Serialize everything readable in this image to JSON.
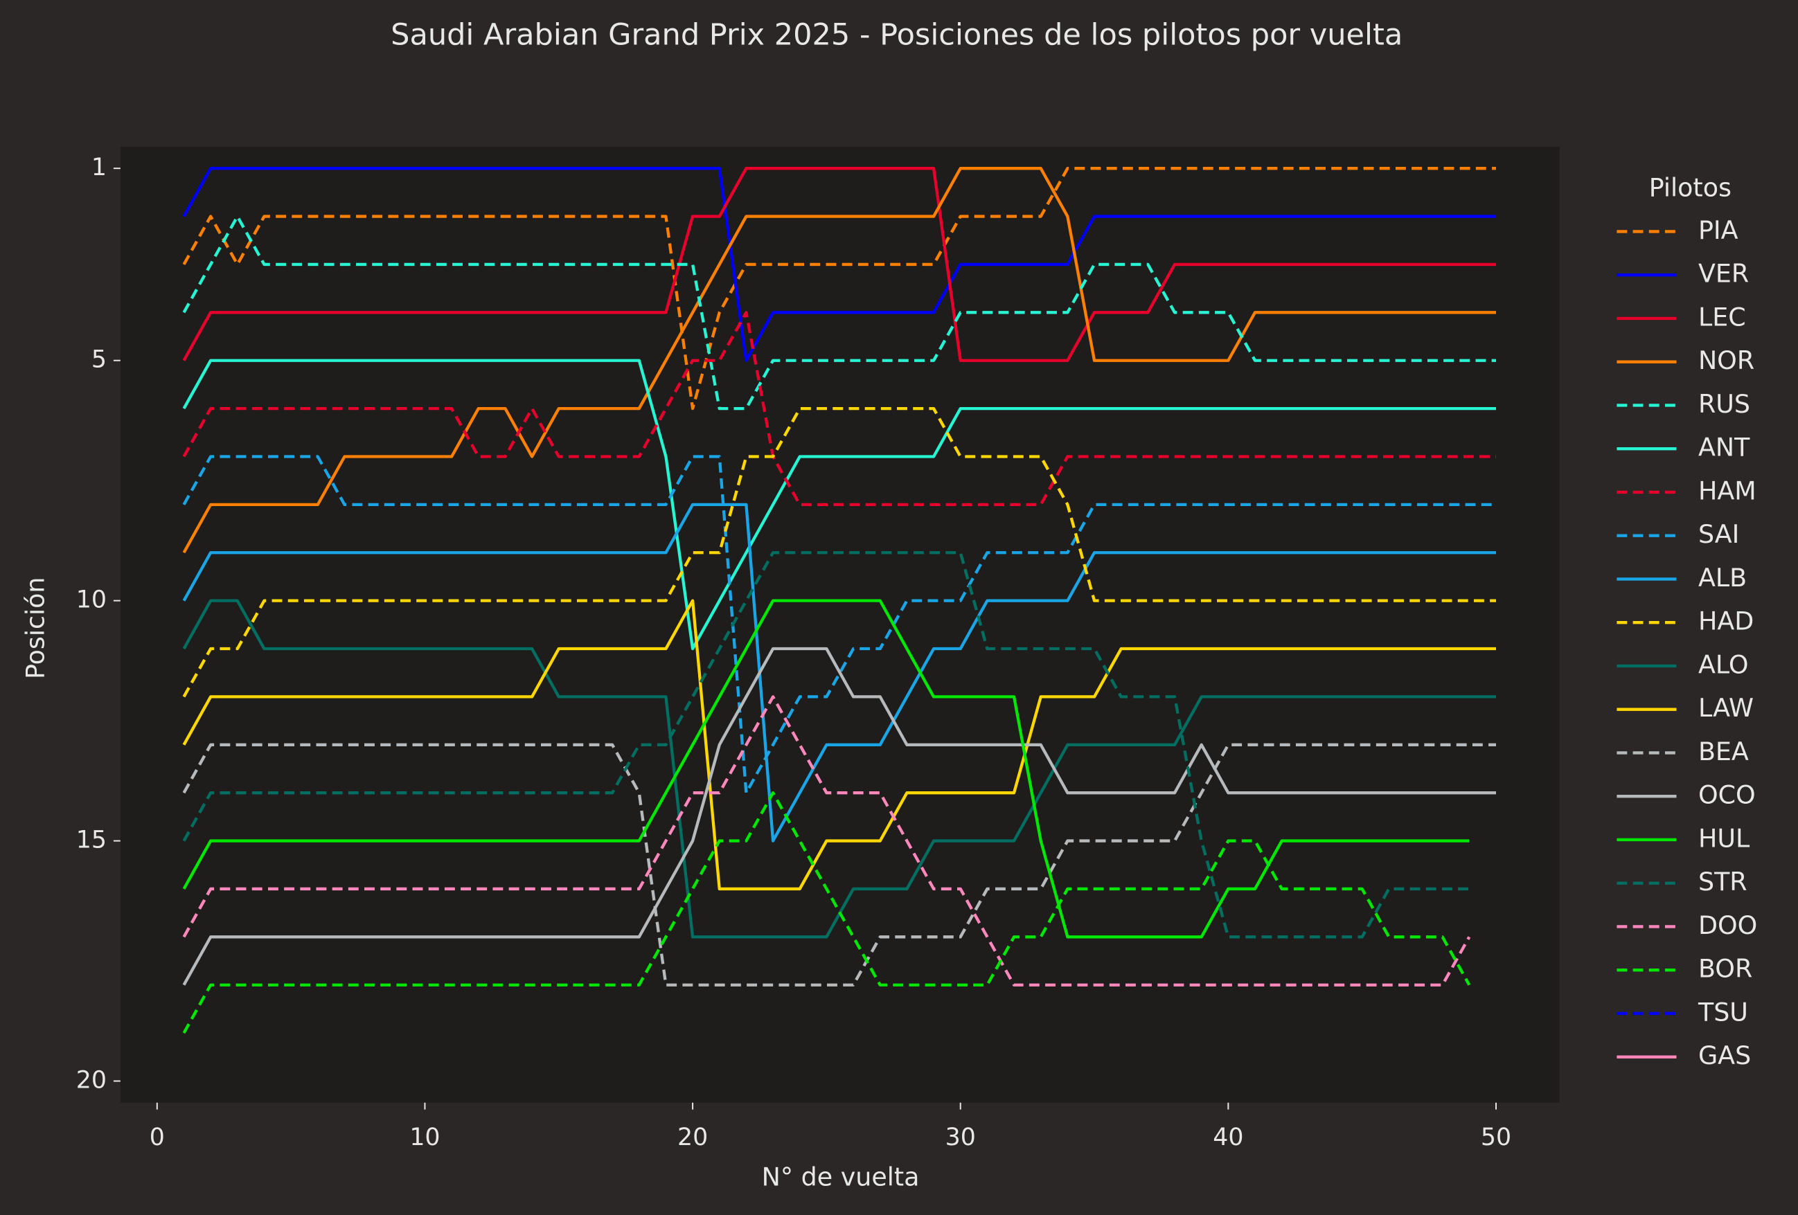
{
  "chart_data": {
    "type": "line",
    "title": "Saudi Arabian Grand Prix 2025 - Posiciones de los pilotos por vuelta",
    "xlabel": "N° de vuelta",
    "ylabel": "Posición",
    "legend_title": "Pilotos",
    "legend": "outside right",
    "xlim": [
      -1.37,
      52.37
    ],
    "xticks": [
      0,
      10,
      20,
      30,
      40,
      50
    ],
    "ylim": [
      0.55,
      20.45
    ],
    "yinvert": true,
    "yticks": [
      1,
      5,
      10,
      15,
      20
    ],
    "x": [
      1,
      2,
      3,
      4,
      5,
      6,
      7,
      8,
      9,
      10,
      11,
      12,
      13,
      14,
      15,
      16,
      17,
      18,
      19,
      20,
      21,
      22,
      23,
      24,
      25,
      26,
      27,
      28,
      29,
      30,
      31,
      32,
      33,
      34,
      35,
      36,
      37,
      38,
      39,
      40,
      41,
      42,
      43,
      44,
      45,
      46,
      47,
      48,
      49,
      50
    ],
    "series": [
      {
        "name": "PIA",
        "color": "#ff8000",
        "linestyle": "dashed",
        "values": [
          3,
          2,
          3,
          2,
          2,
          2,
          2,
          2,
          2,
          2,
          2,
          2,
          2,
          2,
          2,
          2,
          2,
          2,
          2,
          6,
          4,
          3,
          3,
          3,
          3,
          3,
          3,
          3,
          3,
          2,
          2,
          2,
          2,
          1,
          1,
          1,
          1,
          1,
          1,
          1,
          1,
          1,
          1,
          1,
          1,
          1,
          1,
          1,
          1,
          1
        ]
      },
      {
        "name": "VER",
        "color": "#0000ff",
        "linestyle": "solid",
        "values": [
          2,
          1,
          1,
          1,
          1,
          1,
          1,
          1,
          1,
          1,
          1,
          1,
          1,
          1,
          1,
          1,
          1,
          1,
          1,
          1,
          1,
          5,
          4,
          4,
          4,
          4,
          4,
          4,
          4,
          3,
          3,
          3,
          3,
          3,
          2,
          2,
          2,
          2,
          2,
          2,
          2,
          2,
          2,
          2,
          2,
          2,
          2,
          2,
          2,
          2
        ]
      },
      {
        "name": "LEC",
        "color": "#e8002d",
        "linestyle": "solid",
        "values": [
          5,
          4,
          4,
          4,
          4,
          4,
          4,
          4,
          4,
          4,
          4,
          4,
          4,
          4,
          4,
          4,
          4,
          4,
          4,
          2,
          2,
          1,
          1,
          1,
          1,
          1,
          1,
          1,
          1,
          5,
          5,
          5,
          5,
          5,
          4,
          4,
          4,
          3,
          3,
          3,
          3,
          3,
          3,
          3,
          3,
          3,
          3,
          3,
          3,
          3
        ]
      },
      {
        "name": "NOR",
        "color": "#ff8000",
        "linestyle": "solid",
        "values": [
          9,
          8,
          8,
          8,
          8,
          8,
          7,
          7,
          7,
          7,
          7,
          6,
          6,
          7,
          6,
          6,
          6,
          6,
          5,
          4,
          3,
          2,
          2,
          2,
          2,
          2,
          2,
          2,
          2,
          1,
          1,
          1,
          1,
          2,
          5,
          5,
          5,
          5,
          5,
          5,
          4,
          4,
          4,
          4,
          4,
          4,
          4,
          4,
          4,
          4
        ]
      },
      {
        "name": "RUS",
        "color": "#27f4d2",
        "linestyle": "dashed",
        "values": [
          4,
          3,
          2,
          3,
          3,
          3,
          3,
          3,
          3,
          3,
          3,
          3,
          3,
          3,
          3,
          3,
          3,
          3,
          3,
          3,
          6,
          6,
          5,
          5,
          5,
          5,
          5,
          5,
          5,
          4,
          4,
          4,
          4,
          4,
          3,
          3,
          3,
          4,
          4,
          4,
          5,
          5,
          5,
          5,
          5,
          5,
          5,
          5,
          5,
          5
        ]
      },
      {
        "name": "ANT",
        "color": "#27f4d2",
        "linestyle": "solid",
        "values": [
          6,
          5,
          5,
          5,
          5,
          5,
          5,
          5,
          5,
          5,
          5,
          5,
          5,
          5,
          5,
          5,
          5,
          5,
          7,
          11,
          10,
          9,
          8,
          7,
          7,
          7,
          7,
          7,
          7,
          6,
          6,
          6,
          6,
          6,
          6,
          6,
          6,
          6,
          6,
          6,
          6,
          6,
          6,
          6,
          6,
          6,
          6,
          6,
          6,
          6
        ]
      },
      {
        "name": "HAM",
        "color": "#e8002d",
        "linestyle": "dashed",
        "values": [
          7,
          6,
          6,
          6,
          6,
          6,
          6,
          6,
          6,
          6,
          6,
          7,
          7,
          6,
          7,
          7,
          7,
          7,
          6,
          5,
          5,
          4,
          7,
          8,
          8,
          8,
          8,
          8,
          8,
          8,
          8,
          8,
          8,
          7,
          7,
          7,
          7,
          7,
          7,
          7,
          7,
          7,
          7,
          7,
          7,
          7,
          7,
          7,
          7,
          7
        ]
      },
      {
        "name": "SAI",
        "color": "#1aa6e6",
        "linestyle": "dashed",
        "values": [
          8,
          7,
          7,
          7,
          7,
          7,
          8,
          8,
          8,
          8,
          8,
          8,
          8,
          8,
          8,
          8,
          8,
          8,
          8,
          7,
          7,
          14,
          13,
          12,
          12,
          11,
          11,
          10,
          10,
          10,
          9,
          9,
          9,
          9,
          8,
          8,
          8,
          8,
          8,
          8,
          8,
          8,
          8,
          8,
          8,
          8,
          8,
          8,
          8,
          8
        ]
      },
      {
        "name": "ALB",
        "color": "#1aa6e6",
        "linestyle": "solid",
        "values": [
          10,
          9,
          9,
          9,
          9,
          9,
          9,
          9,
          9,
          9,
          9,
          9,
          9,
          9,
          9,
          9,
          9,
          9,
          9,
          8,
          8,
          8,
          15,
          14,
          13,
          13,
          13,
          12,
          11,
          11,
          10,
          10,
          10,
          10,
          9,
          9,
          9,
          9,
          9,
          9,
          9,
          9,
          9,
          9,
          9,
          9,
          9,
          9,
          9,
          9
        ]
      },
      {
        "name": "HAD",
        "color": "#ffd700",
        "linestyle": "dashed",
        "values": [
          12,
          11,
          11,
          10,
          10,
          10,
          10,
          10,
          10,
          10,
          10,
          10,
          10,
          10,
          10,
          10,
          10,
          10,
          10,
          9,
          9,
          7,
          7,
          6,
          6,
          6,
          6,
          6,
          6,
          7,
          7,
          7,
          7,
          8,
          10,
          10,
          10,
          10,
          10,
          10,
          10,
          10,
          10,
          10,
          10,
          10,
          10,
          10,
          10,
          10
        ]
      },
      {
        "name": "ALO",
        "color": "#006f62",
        "linestyle": "solid",
        "values": [
          11,
          10,
          10,
          11,
          11,
          11,
          11,
          11,
          11,
          11,
          11,
          11,
          11,
          11,
          12,
          12,
          12,
          12,
          12,
          17,
          17,
          17,
          17,
          17,
          17,
          16,
          16,
          16,
          15,
          15,
          15,
          15,
          14,
          13,
          13,
          13,
          13,
          13,
          12,
          12,
          12,
          12,
          12,
          12,
          12,
          12,
          12,
          12,
          12,
          12
        ]
      },
      {
        "name": "LAW",
        "color": "#ffd700",
        "linestyle": "solid",
        "values": [
          13,
          12,
          12,
          12,
          12,
          12,
          12,
          12,
          12,
          12,
          12,
          12,
          12,
          12,
          11,
          11,
          11,
          11,
          11,
          10,
          16,
          16,
          16,
          16,
          15,
          15,
          15,
          14,
          14,
          14,
          14,
          14,
          12,
          12,
          12,
          11,
          11,
          11,
          11,
          11,
          11,
          11,
          11,
          11,
          11,
          11,
          11,
          11,
          11,
          11
        ]
      },
      {
        "name": "BEA",
        "color": "#b6babd",
        "linestyle": "dashed",
        "values": [
          14,
          13,
          13,
          13,
          13,
          13,
          13,
          13,
          13,
          13,
          13,
          13,
          13,
          13,
          13,
          13,
          13,
          14,
          18,
          18,
          18,
          18,
          18,
          18,
          18,
          18,
          17,
          17,
          17,
          17,
          16,
          16,
          16,
          15,
          15,
          15,
          15,
          15,
          14,
          13,
          13,
          13,
          13,
          13,
          13,
          13,
          13,
          13,
          13,
          13
        ]
      },
      {
        "name": "OCO",
        "color": "#b6babd",
        "linestyle": "solid",
        "values": [
          18,
          17,
          17,
          17,
          17,
          17,
          17,
          17,
          17,
          17,
          17,
          17,
          17,
          17,
          17,
          17,
          17,
          17,
          16,
          15,
          13,
          12,
          11,
          11,
          11,
          12,
          12,
          13,
          13,
          13,
          13,
          13,
          13,
          14,
          14,
          14,
          14,
          14,
          13,
          14,
          14,
          14,
          14,
          14,
          14,
          14,
          14,
          14,
          14,
          14
        ]
      },
      {
        "name": "HUL",
        "color": "#00e701",
        "linestyle": "solid",
        "values": [
          16,
          15,
          15,
          15,
          15,
          15,
          15,
          15,
          15,
          15,
          15,
          15,
          15,
          15,
          15,
          15,
          15,
          15,
          14,
          13,
          12,
          11,
          10,
          10,
          10,
          10,
          10,
          11,
          12,
          12,
          12,
          12,
          15,
          17,
          17,
          17,
          17,
          17,
          17,
          16,
          16,
          15,
          15,
          15,
          15,
          15,
          15,
          15,
          15,
          null
        ]
      },
      {
        "name": "STR",
        "color": "#006f62",
        "linestyle": "dashed",
        "values": [
          15,
          14,
          14,
          14,
          14,
          14,
          14,
          14,
          14,
          14,
          14,
          14,
          14,
          14,
          14,
          14,
          14,
          13,
          13,
          12,
          11,
          10,
          9,
          9,
          9,
          9,
          9,
          9,
          9,
          9,
          11,
          11,
          11,
          11,
          11,
          12,
          12,
          12,
          15,
          17,
          17,
          17,
          17,
          17,
          17,
          16,
          16,
          16,
          16,
          null
        ]
      },
      {
        "name": "DOO",
        "color": "#ff87bc",
        "linestyle": "dashed",
        "values": [
          17,
          16,
          16,
          16,
          16,
          16,
          16,
          16,
          16,
          16,
          16,
          16,
          16,
          16,
          16,
          16,
          16,
          16,
          15,
          14,
          14,
          13,
          12,
          13,
          14,
          14,
          14,
          15,
          16,
          16,
          17,
          18,
          18,
          18,
          18,
          18,
          18,
          18,
          18,
          18,
          18,
          18,
          18,
          18,
          18,
          18,
          18,
          18,
          17,
          null
        ]
      },
      {
        "name": "BOR",
        "color": "#00e701",
        "linestyle": "dashed",
        "values": [
          19,
          18,
          18,
          18,
          18,
          18,
          18,
          18,
          18,
          18,
          18,
          18,
          18,
          18,
          18,
          18,
          18,
          18,
          17,
          16,
          15,
          15,
          14,
          15,
          16,
          17,
          18,
          18,
          18,
          18,
          18,
          17,
          17,
          16,
          16,
          16,
          16,
          16,
          16,
          15,
          15,
          16,
          16,
          16,
          16,
          17,
          17,
          17,
          18,
          null
        ]
      },
      {
        "name": "TSU",
        "color": "#0000ff",
        "linestyle": "dashed",
        "values": [
          null,
          null,
          null,
          null,
          null,
          null,
          null,
          null,
          null,
          null,
          null,
          null,
          null,
          null,
          null,
          null,
          null,
          null,
          null,
          null,
          null,
          null,
          null,
          null,
          null,
          null,
          null,
          null,
          null,
          null,
          null,
          null,
          null,
          null,
          null,
          null,
          null,
          null,
          null,
          null,
          null,
          null,
          null,
          null,
          null,
          null,
          null,
          null,
          null,
          null
        ]
      },
      {
        "name": "GAS",
        "color": "#ff87bc",
        "linestyle": "solid",
        "values": [
          null,
          null,
          null,
          null,
          null,
          null,
          null,
          null,
          null,
          null,
          null,
          null,
          null,
          null,
          null,
          null,
          null,
          null,
          null,
          null,
          null,
          null,
          null,
          null,
          null,
          null,
          null,
          null,
          null,
          null,
          null,
          null,
          null,
          null,
          null,
          null,
          null,
          null,
          null,
          null,
          null,
          null,
          null,
          null,
          null,
          null,
          null,
          null,
          null,
          null
        ]
      }
    ]
  }
}
